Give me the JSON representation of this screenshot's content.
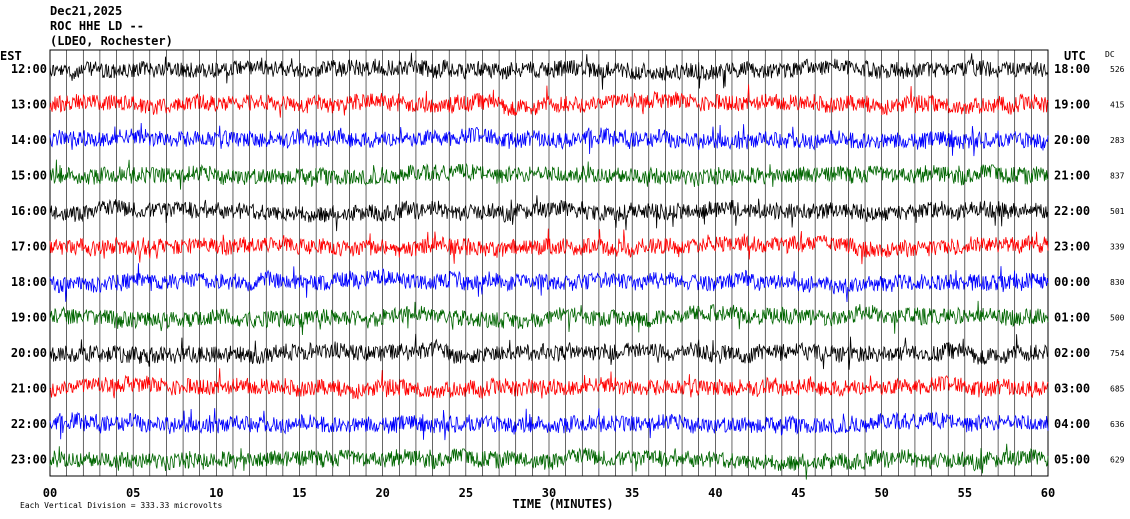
{
  "header": {
    "date": "Dec21,2025",
    "station": "ROC HHE LD --",
    "location": "(LDEO, Rochester)"
  },
  "labels": {
    "left_tz": "EST",
    "right_tz": "UTC",
    "dc_header": "DC",
    "footer_scale": "Each Vertical Division =  333.33 microvolts"
  },
  "chart_data": {
    "type": "line",
    "title": "",
    "xlabel": "TIME (MINUTES)",
    "ylabel": "",
    "xlim": [
      0,
      60
    ],
    "x_ticks": [
      "00",
      "05",
      "10",
      "15",
      "20",
      "25",
      "30",
      "35",
      "40",
      "45",
      "50",
      "55",
      "60"
    ],
    "grid": true,
    "trace_colors": [
      "#000000",
      "#ff0000",
      "#0000ff",
      "#006600"
    ],
    "rows": [
      {
        "est": "12:00",
        "utc": "18:00",
        "dc": "526"
      },
      {
        "est": "13:00",
        "utc": "19:00",
        "dc": "415"
      },
      {
        "est": "14:00",
        "utc": "20:00",
        "dc": "283"
      },
      {
        "est": "15:00",
        "utc": "21:00",
        "dc": "837"
      },
      {
        "est": "16:00",
        "utc": "22:00",
        "dc": "501"
      },
      {
        "est": "17:00",
        "utc": "23:00",
        "dc": "339"
      },
      {
        "est": "18:00",
        "utc": "00:00",
        "dc": "830"
      },
      {
        "est": "19:00",
        "utc": "01:00",
        "dc": "500"
      },
      {
        "est": "20:00",
        "utc": "02:00",
        "dc": "754"
      },
      {
        "est": "21:00",
        "utc": "03:00",
        "dc": "685"
      },
      {
        "est": "22:00",
        "utc": "04:00",
        "dc": "636"
      },
      {
        "est": "23:00",
        "utc": "05:00",
        "dc": "629"
      }
    ]
  }
}
